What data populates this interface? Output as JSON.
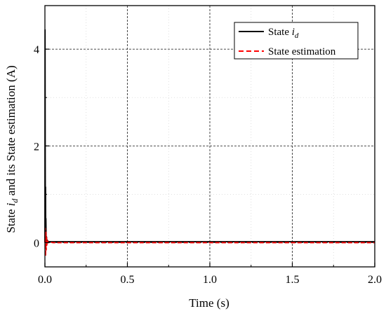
{
  "chart_data": {
    "type": "line",
    "xlabel": "Time (s)",
    "ylabel_parts": [
      "State ",
      "i",
      "d",
      " and its State estimation (A)"
    ],
    "xlim": [
      0,
      2.0
    ],
    "ylim": [
      -0.5,
      4.9
    ],
    "xticks": [
      0.0,
      0.5,
      1.0,
      1.5,
      2.0
    ],
    "xtick_labels": [
      "0.0",
      "0.5",
      "1.0",
      "1.5",
      "2.0"
    ],
    "yticks": [
      0,
      2,
      4
    ],
    "ytick_labels": [
      "0",
      "2",
      "4"
    ],
    "grid": true,
    "legend_position": "top-right",
    "series": [
      {
        "legend_parts": [
          "State ",
          "i",
          "d"
        ],
        "color": "#000000",
        "dash": "solid",
        "x": [
          0,
          0.001,
          0.002,
          0.003,
          0.004,
          0.005,
          0.006,
          0.008,
          0.01,
          0.012,
          0.015,
          0.02,
          0.03,
          0.05,
          0.1,
          0.5,
          1.0,
          1.5,
          2.0
        ],
        "y": [
          0,
          4.4,
          1.8,
          0.4,
          1.15,
          0.2,
          0.5,
          0.0,
          0.12,
          -0.02,
          0.05,
          0.02,
          0.02,
          0.02,
          0.02,
          0.02,
          0.02,
          0.02,
          0.02
        ]
      },
      {
        "legend_parts": [
          "State estimation"
        ],
        "color": "#ff0000",
        "dash": "dashed",
        "x": [
          0,
          0.002,
          0.004,
          0.006,
          0.008,
          0.01,
          0.012,
          0.015,
          0.02,
          0.03,
          0.05,
          0.1,
          0.5,
          1.0,
          1.5,
          2.0
        ],
        "y": [
          0,
          0.3,
          -0.28,
          0.22,
          -0.15,
          0.1,
          -0.05,
          0.04,
          0.0,
          0.01,
          0.0,
          0.0,
          0.0,
          0.0,
          0.0,
          0.0
        ]
      }
    ]
  }
}
